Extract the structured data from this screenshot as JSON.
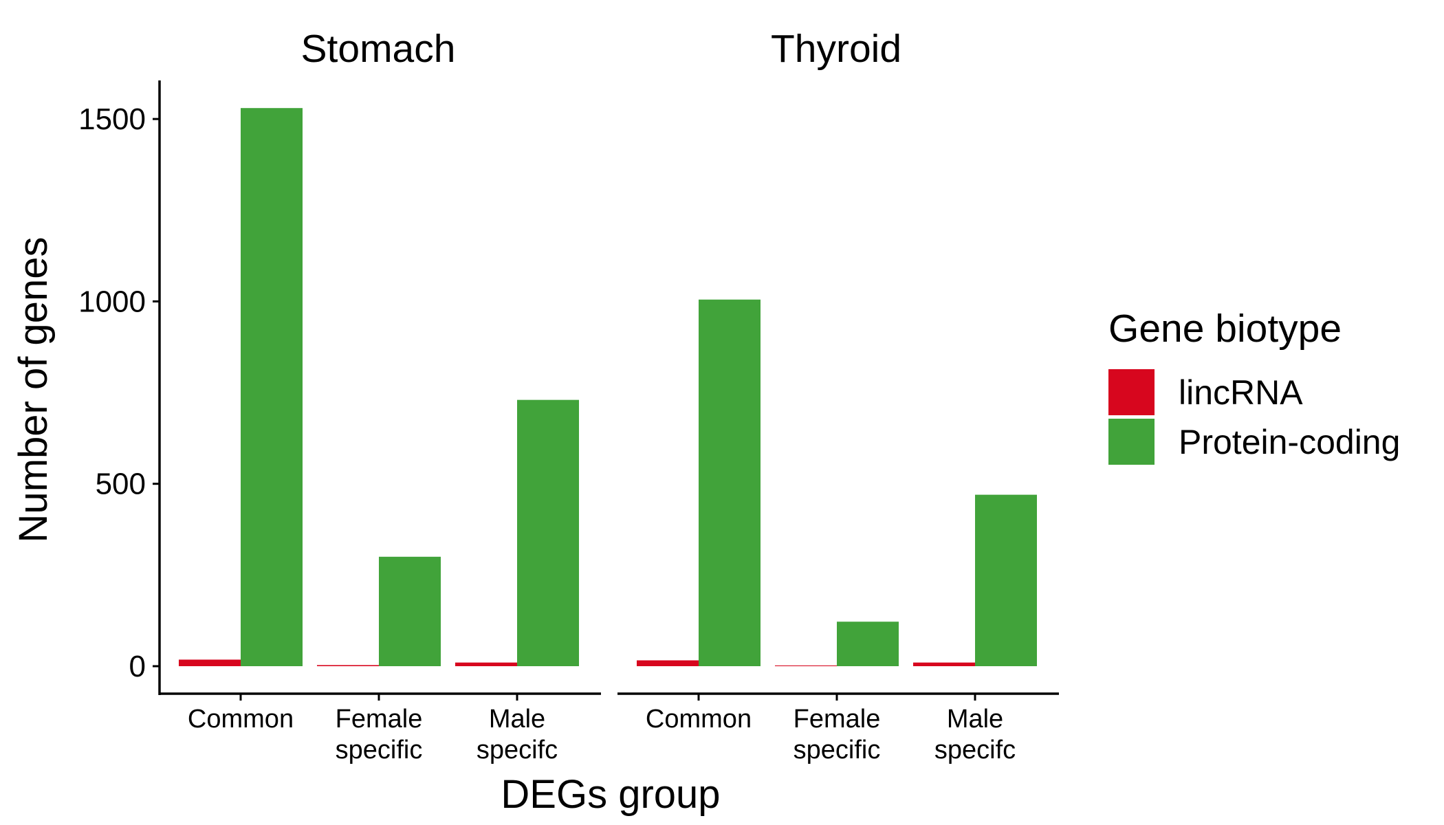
{
  "chart_data": {
    "type": "bar",
    "xlabel": "DEGs group",
    "ylabel": "Number of genes",
    "ylim": [
      0,
      1600
    ],
    "yticks": [
      0,
      500,
      1000,
      1500
    ],
    "grid": false,
    "legend": {
      "title": "Gene biotype",
      "position": "right",
      "entries": [
        "lincRNA",
        "Protein-coding"
      ]
    },
    "colors": {
      "lincRNA": "#d7061e",
      "Protein-coding": "#41a33a"
    },
    "categories": [
      [
        "Common"
      ],
      [
        "Female",
        "specific"
      ],
      [
        "Male",
        "specifc"
      ]
    ],
    "facets": [
      {
        "title": "Stomach",
        "series": [
          {
            "name": "lincRNA",
            "values": [
              18,
              3,
              10
            ]
          },
          {
            "name": "Protein-coding",
            "values": [
              1530,
              300,
              730
            ]
          }
        ]
      },
      {
        "title": "Thyroid",
        "series": [
          {
            "name": "lincRNA",
            "values": [
              16,
              2,
              10
            ]
          },
          {
            "name": "Protein-coding",
            "values": [
              1005,
              122,
              470
            ]
          }
        ]
      }
    ]
  }
}
